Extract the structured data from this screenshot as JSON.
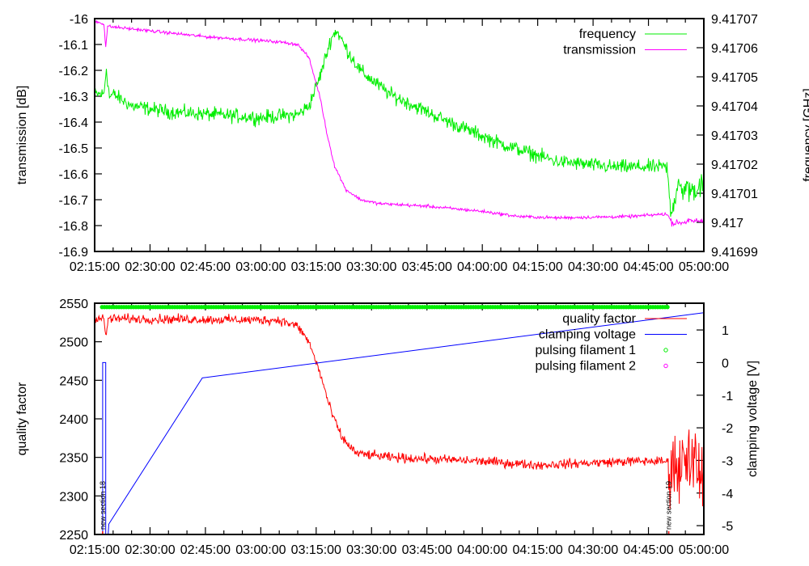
{
  "chart_data": [
    {
      "type": "line",
      "title": "",
      "xlabel": "",
      "ylabel": "transmission [dB]",
      "y2label": "frequency [GHz]",
      "xlim": [
        "02:15:00",
        "05:00:00"
      ],
      "ylim": [
        -16.9,
        -16.0
      ],
      "y2lim": [
        9.41699,
        9.41707
      ],
      "xticks": [
        "02:15:00",
        "02:30:00",
        "02:45:00",
        "03:00:00",
        "03:15:00",
        "03:30:00",
        "03:45:00",
        "04:00:00",
        "04:15:00",
        "04:30:00",
        "04:45:00",
        "05:00:00"
      ],
      "yticks": [
        "-16",
        "-16.1",
        "-16.2",
        "-16.3",
        "-16.4",
        "-16.5",
        "-16.6",
        "-16.7",
        "-16.8",
        "-16.9"
      ],
      "y2ticks": [
        "9.41707",
        "9.41706",
        "9.41705",
        "9.41704",
        "9.41703",
        "9.41702",
        "9.41701",
        "9.417",
        "9.41699"
      ],
      "legend_position": "top-right",
      "series": [
        {
          "name": "frequency",
          "axis": "y2",
          "color": "#00ee00",
          "noise": 1.2e-06,
          "points": [
            [
              "02:15:00",
              9.417044
            ],
            [
              "02:17:30",
              9.417044
            ],
            [
              "02:18:10",
              9.417053
            ],
            [
              "02:19:00",
              9.417043
            ],
            [
              "02:20:00",
              9.417044
            ],
            [
              "02:25:00",
              9.41704
            ],
            [
              "02:35:00",
              9.417038
            ],
            [
              "03:00:00",
              9.417036
            ],
            [
              "03:10:00",
              9.417037
            ],
            [
              "03:13:00",
              9.41704
            ],
            [
              "03:16:00",
              9.41705
            ],
            [
              "03:19:00",
              9.417063
            ],
            [
              "03:20:30",
              9.417066
            ],
            [
              "03:23:00",
              9.41706
            ],
            [
              "03:27:00",
              9.417052
            ],
            [
              "03:35:00",
              9.417044
            ],
            [
              "03:50:00",
              9.417035
            ],
            [
              "04:05:00",
              9.417027
            ],
            [
              "04:20:00",
              9.417021
            ],
            [
              "04:35:00",
              9.417019
            ],
            [
              "04:50:00",
              9.417019
            ],
            [
              "04:51:00",
              9.417004
            ],
            [
              "04:53:00",
              9.417012
            ],
            [
              "04:57:00",
              9.417011
            ],
            [
              "05:00:00",
              9.417013
            ]
          ]
        },
        {
          "name": "transmission",
          "axis": "y",
          "color": "#ff00ff",
          "noise": 0.003,
          "points": [
            [
              "02:15:00",
              -16.01
            ],
            [
              "02:17:30",
              -16.02
            ],
            [
              "02:18:00",
              -16.11
            ],
            [
              "02:18:30",
              -16.03
            ],
            [
              "02:45:00",
              -16.07
            ],
            [
              "03:05:00",
              -16.09
            ],
            [
              "03:10:00",
              -16.1
            ],
            [
              "03:13:00",
              -16.15
            ],
            [
              "03:16:00",
              -16.3
            ],
            [
              "03:18:00",
              -16.45
            ],
            [
              "03:20:00",
              -16.57
            ],
            [
              "03:23:00",
              -16.66
            ],
            [
              "03:27:00",
              -16.7
            ],
            [
              "03:32:00",
              -16.715
            ],
            [
              "03:45:00",
              -16.725
            ],
            [
              "04:00:00",
              -16.745
            ],
            [
              "04:10:00",
              -16.765
            ],
            [
              "04:20:00",
              -16.77
            ],
            [
              "04:40:00",
              -16.765
            ],
            [
              "04:50:00",
              -16.755
            ],
            [
              "04:51:30",
              -16.79
            ],
            [
              "05:00:00",
              -16.78
            ]
          ]
        }
      ]
    },
    {
      "type": "line",
      "title": "",
      "xlabel": "",
      "ylabel": "quality factor",
      "y2label": "clamping voltage [V]",
      "xlim": [
        "02:15:00",
        "05:00:00"
      ],
      "ylim": [
        2250,
        2550
      ],
      "y2lim": [
        -5.27,
        1.82
      ],
      "xticks": [
        "02:15:00",
        "02:30:00",
        "02:45:00",
        "03:00:00",
        "03:15:00",
        "03:30:00",
        "03:45:00",
        "04:00:00",
        "04:15:00",
        "04:30:00",
        "04:45:00",
        "05:00:00"
      ],
      "yticks": [
        "2550",
        "2500",
        "2450",
        "2400",
        "2350",
        "2300",
        "2250"
      ],
      "y2ticks": [
        "1",
        "0",
        "-1",
        "-2",
        "-3",
        "-4",
        "-5"
      ],
      "legend_position": "top-right",
      "series": [
        {
          "name": "quality factor",
          "axis": "y",
          "color": "#ff0000",
          "noise": 3,
          "points": [
            [
              "02:15:00",
              2530
            ],
            [
              "02:17:30",
              2530
            ],
            [
              "02:18:00",
              2505
            ],
            [
              "02:18:40",
              2530
            ],
            [
              "03:05:00",
              2528
            ],
            [
              "03:10:00",
              2520
            ],
            [
              "03:13:00",
              2500
            ],
            [
              "03:16:00",
              2460
            ],
            [
              "03:19:00",
              2410
            ],
            [
              "03:22:00",
              2375
            ],
            [
              "03:26:00",
              2355
            ],
            [
              "03:35:00",
              2350
            ],
            [
              "04:00:00",
              2345
            ],
            [
              "04:15:00",
              2340
            ],
            [
              "04:40:00",
              2345
            ],
            [
              "04:50:00",
              2345
            ],
            [
              "05:00:00",
              2335
            ]
          ],
          "burst": {
            "from": "04:50:30",
            "to": "05:00:00",
            "amplitude": 30
          }
        },
        {
          "name": "clamping voltage",
          "axis": "y2",
          "color": "#0000ff",
          "noise": 0,
          "points": [
            [
              "02:17:10",
              -5.27
            ],
            [
              "02:17:10",
              0.0
            ],
            [
              "02:18:00",
              0.0
            ],
            [
              "02:18:00",
              -5.27
            ],
            [
              "02:18:40",
              -5.27
            ],
            [
              "02:18:50",
              -4.95
            ],
            [
              "02:44:10",
              -0.47
            ],
            [
              "05:00:00",
              1.53
            ]
          ]
        },
        {
          "name": "pulsing filament 1",
          "axis": "y",
          "color": "#00ee00",
          "marker": "circle",
          "range": [
            "02:17:00",
            "04:50:30"
          ],
          "value": 2545
        },
        {
          "name": "pulsing filament 2",
          "axis": "y",
          "color": "#ff00ff",
          "marker": "circle",
          "points": []
        }
      ],
      "annotations": [
        {
          "text": "new section 18",
          "x": "02:17:10"
        },
        {
          "text": "new section 19",
          "x": "04:50:30"
        }
      ]
    }
  ]
}
